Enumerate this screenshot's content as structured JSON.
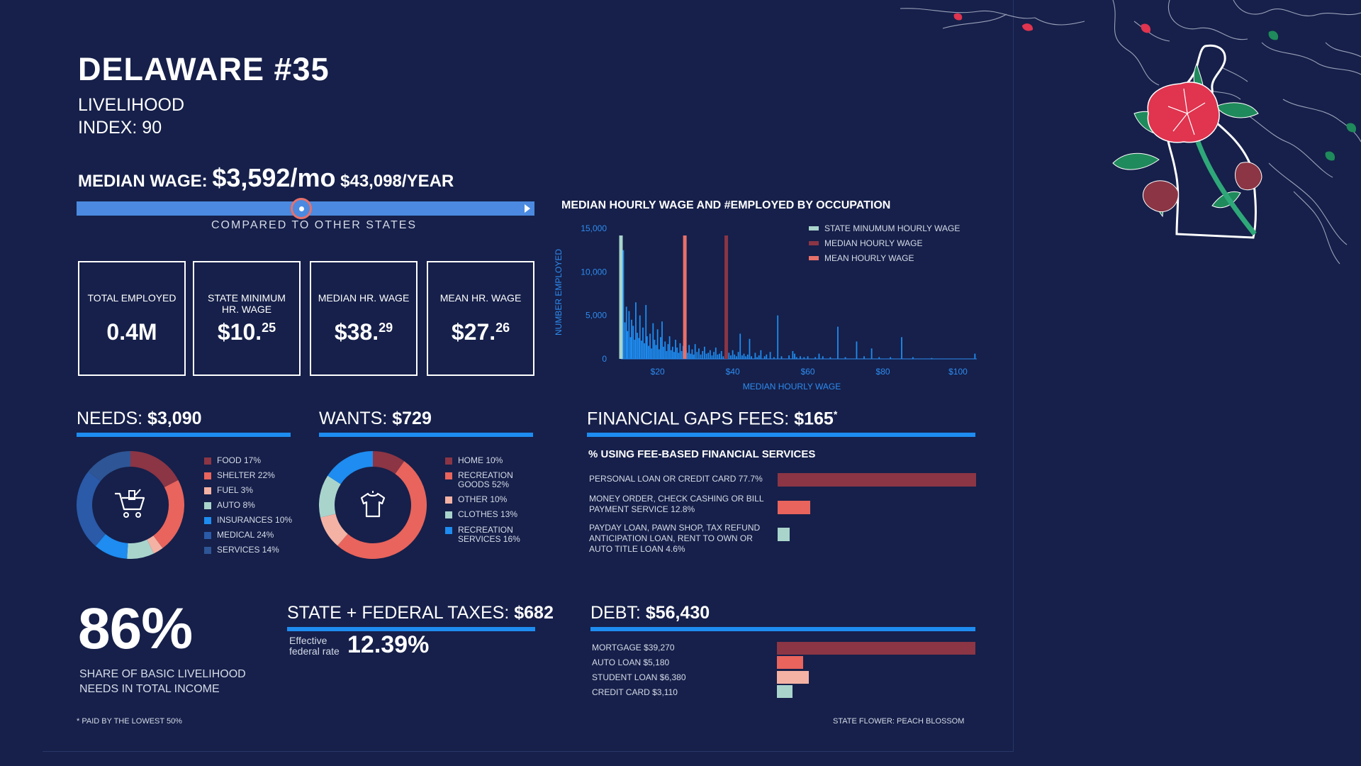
{
  "header": {
    "title": "DELAWARE #35",
    "subtitle_line1": "LIVELIHOOD",
    "subtitle_line2": "INDEX: 90"
  },
  "median_wage": {
    "label": "MEDIAN WAGE:",
    "monthly": "$3,592/mo",
    "yearly": "$43,098/YEAR",
    "comparison_caption": "COMPARED TO OTHER STATES",
    "position_fraction": 0.49
  },
  "stats": [
    {
      "label": "TOTAL EMPLOYED",
      "value": "0.4M",
      "sup": ""
    },
    {
      "label": "STATE MINIMUM HR. WAGE",
      "value": "$10.",
      "sup": "25"
    },
    {
      "label": "MEDIAN HR. WAGE",
      "value": "$38.",
      "sup": "29"
    },
    {
      "label": "MEAN HR. WAGE",
      "value": "$27.",
      "sup": "26"
    }
  ],
  "chart_data": [
    {
      "type": "bar",
      "title": "MEDIAN HOURLY WAGE AND #EMPLOYED BY OCCUPATION",
      "xlabel": "MEDIAN HOURLY WAGE",
      "ylabel": "NUMBER EMPLOYED",
      "xlim": [
        10.25,
        105
      ],
      "ylim": [
        0,
        15000
      ],
      "x_ticks": [
        {
          "v": 20,
          "label": "$20"
        },
        {
          "v": 40,
          "label": "$40"
        },
        {
          "v": 60,
          "label": "$60"
        },
        {
          "v": 80,
          "label": "$80"
        },
        {
          "v": 100,
          "label": "$100"
        }
      ],
      "y_ticks": [
        {
          "v": 0,
          "label": "0"
        },
        {
          "v": 5000,
          "label": "5,000"
        },
        {
          "v": 10000,
          "label": "10,000"
        },
        {
          "v": 15000,
          "label": "15,000"
        }
      ],
      "legend": [
        {
          "label": "STATE MINUMUM HOURLY WAGE",
          "color": "#a9d4cc"
        },
        {
          "label": "MEDIAN HOURLY WAGE",
          "color": "#8b3545"
        },
        {
          "label": "MEAN HOURLY WAGE",
          "color": "#e8706a"
        }
      ],
      "reference_lines": [
        {
          "name": "STATE MINUMUM HOURLY WAGE",
          "x": 10.25,
          "color": "#a9d4cc"
        },
        {
          "name": "MEDIAN HOURLY WAGE",
          "x": 38.29,
          "color": "#8b3545"
        },
        {
          "name": "MEAN HOURLY WAGE",
          "x": 27.26,
          "color": "#e8706a"
        }
      ],
      "series": [
        {
          "color": "#1e8cf0",
          "points": [
            [
              10.9,
              12500
            ],
            [
              11.3,
              4200
            ],
            [
              11.7,
              6000
            ],
            [
              12.0,
              3200
            ],
            [
              12.4,
              5500
            ],
            [
              12.8,
              2500
            ],
            [
              13.1,
              4500
            ],
            [
              13.5,
              3800
            ],
            [
              13.9,
              2200
            ],
            [
              14.2,
              6500
            ],
            [
              14.6,
              3000
            ],
            [
              15.0,
              2400
            ],
            [
              15.3,
              5000
            ],
            [
              15.7,
              2100
            ],
            [
              16.1,
              3600
            ],
            [
              16.5,
              1800
            ],
            [
              16.9,
              6200
            ],
            [
              17.2,
              2600
            ],
            [
              17.6,
              1500
            ],
            [
              18.0,
              2900
            ],
            [
              18.4,
              1200
            ],
            [
              18.8,
              4100
            ],
            [
              19.2,
              2200
            ],
            [
              19.6,
              1600
            ],
            [
              20.0,
              3400
            ],
            [
              20.4,
              1100
            ],
            [
              20.8,
              2500
            ],
            [
              21.2,
              4300
            ],
            [
              21.6,
              1400
            ],
            [
              22.0,
              2000
            ],
            [
              22.4,
              900
            ],
            [
              22.8,
              1700
            ],
            [
              23.2,
              2600
            ],
            [
              23.6,
              1000
            ],
            [
              24.0,
              1400
            ],
            [
              24.4,
              800
            ],
            [
              24.8,
              2200
            ],
            [
              25.2,
              1300
            ],
            [
              25.6,
              700
            ],
            [
              26.0,
              1800
            ],
            [
              26.4,
              900
            ],
            [
              26.8,
              1500
            ],
            [
              27.6,
              1000
            ],
            [
              28.0,
              700
            ],
            [
              28.4,
              1600
            ],
            [
              28.8,
              600
            ],
            [
              29.2,
              1100
            ],
            [
              29.6,
              500
            ],
            [
              30.0,
              1700
            ],
            [
              30.5,
              800
            ],
            [
              31.0,
              1200
            ],
            [
              31.5,
              500
            ],
            [
              32.0,
              900
            ],
            [
              32.5,
              1400
            ],
            [
              33.0,
              600
            ],
            [
              33.5,
              700
            ],
            [
              34.0,
              1000
            ],
            [
              34.5,
              400
            ],
            [
              35.0,
              800
            ],
            [
              35.5,
              1300
            ],
            [
              36.0,
              500
            ],
            [
              36.5,
              600
            ],
            [
              37.0,
              900
            ],
            [
              37.5,
              300
            ],
            [
              39.0,
              700
            ],
            [
              39.5,
              400
            ],
            [
              40.0,
              1000
            ],
            [
              40.5,
              500
            ],
            [
              41.0,
              300
            ],
            [
              41.5,
              800
            ],
            [
              42.0,
              2900
            ],
            [
              42.5,
              400
            ],
            [
              43.0,
              600
            ],
            [
              43.5,
              300
            ],
            [
              44.0,
              500
            ],
            [
              44.5,
              2300
            ],
            [
              45.0,
              300
            ],
            [
              46.0,
              700
            ],
            [
              46.5,
              200
            ],
            [
              47.0,
              400
            ],
            [
              47.5,
              1000
            ],
            [
              48.5,
              300
            ],
            [
              49.0,
              500
            ],
            [
              50.0,
              800
            ],
            [
              51.0,
              200
            ],
            [
              52.0,
              5000
            ],
            [
              53.0,
              300
            ],
            [
              55.0,
              400
            ],
            [
              56.0,
              900
            ],
            [
              56.5,
              600
            ],
            [
              57.0,
              200
            ],
            [
              58.0,
              300
            ],
            [
              59.0,
              200
            ],
            [
              60.0,
              300
            ],
            [
              62.0,
              200
            ],
            [
              63.0,
              600
            ],
            [
              64.0,
              300
            ],
            [
              66.0,
              200
            ],
            [
              68.0,
              3700
            ],
            [
              70.0,
              200
            ],
            [
              73.0,
              2000
            ],
            [
              75.0,
              300
            ],
            [
              77.0,
              1200
            ],
            [
              79.0,
              200
            ],
            [
              82.0,
              200
            ],
            [
              85.0,
              2500
            ],
            [
              88.0,
              200
            ],
            [
              93.0,
              100
            ],
            [
              104.5,
              600
            ]
          ]
        }
      ]
    },
    {
      "type": "pie",
      "title": "NEEDS: $3,090",
      "slices": [
        {
          "label": "FOOD",
          "value": 17,
          "color": "#8b3545"
        },
        {
          "label": "SHELTER",
          "value": 22,
          "color": "#e8645c"
        },
        {
          "label": "FUEL",
          "value": 3,
          "color": "#f4b2a4"
        },
        {
          "label": "AUTO",
          "value": 8,
          "color": "#a9d4cc"
        },
        {
          "label": "INSURANCES",
          "value": 10,
          "color": "#1e8cf0"
        },
        {
          "label": "MEDICAL",
          "value": 24,
          "color": "#2a5aa8"
        },
        {
          "label": "SERVICES",
          "value": 14,
          "color": "#2e5595"
        }
      ]
    },
    {
      "type": "pie",
      "title": "WANTS: $729",
      "slices": [
        {
          "label": "HOME",
          "value": 10,
          "color": "#8b3545"
        },
        {
          "label": "RECREATION GOODS",
          "value": 52,
          "color": "#e8645c"
        },
        {
          "label": "OTHER",
          "value": 10,
          "color": "#f4b2a4"
        },
        {
          "label": "CLOTHES",
          "value": 13,
          "color": "#a9d4cc"
        },
        {
          "label": "RECREATION SERVICES",
          "value": 16,
          "color": "#1e8cf0"
        }
      ]
    },
    {
      "type": "bar",
      "title": "% USING FEE-BASED FINANCIAL SERVICES",
      "xlim": [
        0,
        77.7
      ],
      "categories": [
        "PERSONAL LOAN OR CREDIT CARD",
        "MONEY ORDER, CHECK CASHING OR BILL PAYMENT SERVICE",
        "PAYDAY LOAN, PAWN SHOP, TAX REFUND ANTICIPATION LOAN, RENT TO OWN OR AUTO TITLE LOAN"
      ],
      "values": [
        77.7,
        12.8,
        4.6
      ],
      "colors": [
        "#8b3545",
        "#e8645c",
        "#a9d4cc"
      ]
    },
    {
      "type": "bar",
      "title": "DEBT: $56,430",
      "xlim": [
        0,
        39270
      ],
      "categories": [
        "MORTGAGE",
        "AUTO LOAN",
        "STUDENT LOAN",
        "CREDIT CARD"
      ],
      "values": [
        39270,
        5180,
        6380,
        3110
      ],
      "colors": [
        "#8b3545",
        "#e8645c",
        "#f4b2a4",
        "#a9d4cc"
      ]
    }
  ],
  "needs": {
    "label": "NEEDS:",
    "amount": "$3,090",
    "legend": [
      "FOOD 17%",
      "SHELTER 22%",
      "FUEL 3%",
      "AUTO 8%",
      "INSURANCES 10%",
      "MEDICAL 24%",
      "SERVICES 14%"
    ],
    "center_icon": "shopping-cart-icon"
  },
  "wants": {
    "label": "WANTS:",
    "amount": "$729",
    "legend": [
      "HOME 10%",
      "RECREATION\nGOODS 52%",
      "OTHER 10%",
      "CLOTHES 13%",
      "RECREATION\nSERVICES 16%"
    ],
    "center_icon": "tshirt-icon"
  },
  "financial": {
    "label": "FINANCIAL GAPS FEES:",
    "amount": "$165",
    "asterisk": "*",
    "subtitle": "% USING FEE-BASED FINANCIAL SERVICES",
    "items": [
      "PERSONAL LOAN OR CREDIT CARD 77.7%",
      "MONEY ORDER, CHECK CASHING OR BILL PAYMENT SERVICE 12.8%",
      "PAYDAY LOAN, PAWN SHOP, TAX REFUND ANTICIPATION LOAN, RENT TO OWN OR AUTO TITLE LOAN 4.6%"
    ]
  },
  "share": {
    "value": "86%",
    "caption_line1": "SHARE OF BASIC LIVELIHOOD",
    "caption_line2": "NEEDS IN TOTAL INCOME"
  },
  "taxes": {
    "label": "STATE + FEDERAL TAXES:",
    "amount": "$682",
    "rate_label_line1": "Effective",
    "rate_label_line2": "federal rate",
    "rate": "12.39%"
  },
  "debt": {
    "label": "DEBT:",
    "amount": "$56,430",
    "items": [
      "MORTGAGE $39,270",
      "AUTO LOAN $5,180",
      "STUDENT LOAN $6,380",
      "CREDIT CARD $3,110"
    ]
  },
  "footnotes": {
    "left": "* PAID BY THE LOWEST 50%",
    "right": "STATE FLOWER: PEACH BLOSSOM"
  },
  "colors": {
    "background": "#16204a",
    "accent_blue": "#1e8cf0",
    "dark_red": "#8b3545",
    "coral": "#e8645c",
    "peach": "#f4b2a4",
    "mint": "#a9d4cc",
    "flower_pink": "#e0344f",
    "leaf_green": "#1f8a5b"
  }
}
